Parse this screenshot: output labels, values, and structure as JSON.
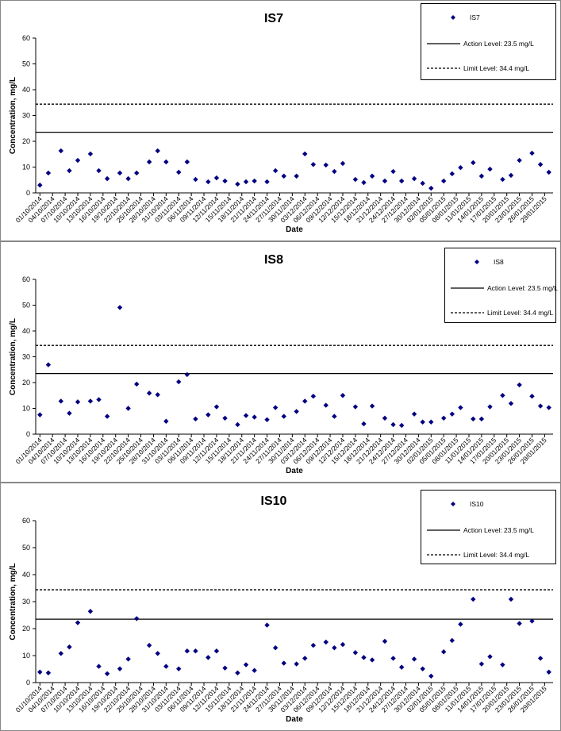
{
  "chart_data": [
    {
      "type": "scatter",
      "title": "IS7",
      "x_label": "Date",
      "y_label": "Concentration, mg/L",
      "xlim": [
        "30/09/2014",
        "31/01/2015"
      ],
      "xticks": [
        "01/10/2014",
        "04/10/2014",
        "07/10/2014",
        "10/10/2014",
        "13/10/2014",
        "16/10/2014",
        "19/10/2014",
        "22/10/2014",
        "25/10/2014",
        "28/10/2014",
        "31/10/2014",
        "03/11/2014",
        "06/11/2014",
        "09/11/2014",
        "12/11/2014",
        "15/11/2014",
        "18/11/2014",
        "21/11/2014",
        "24/11/2014",
        "27/11/2014",
        "30/11/2014",
        "03/12/2014",
        "06/12/2014",
        "09/12/2014",
        "12/12/2014",
        "15/12/2014",
        "18/12/2014",
        "21/12/2014",
        "24/12/2014",
        "27/12/2014",
        "30/12/2014",
        "02/01/2015",
        "05/01/2015",
        "08/01/2015",
        "11/01/2015",
        "14/01/2015",
        "17/01/2015",
        "20/01/2015",
        "23/01/2015",
        "26/01/2015",
        "29/01/2015"
      ],
      "ylim": [
        0,
        60
      ],
      "yticks": [
        0,
        10,
        20,
        30,
        40,
        50,
        60
      ],
      "series": [
        {
          "name": "IS7",
          "color": "#000080",
          "marker": "diamond",
          "x": [
            "01/10/2014",
            "03/10/2014",
            "06/10/2014",
            "08/10/2014",
            "10/10/2014",
            "13/10/2014",
            "15/10/2014",
            "17/10/2014",
            "20/10/2014",
            "22/10/2014",
            "24/10/2014",
            "27/10/2014",
            "29/10/2014",
            "31/10/2014",
            "03/11/2014",
            "05/11/2014",
            "07/11/2014",
            "10/11/2014",
            "12/11/2014",
            "14/11/2014",
            "17/11/2014",
            "19/11/2014",
            "21/11/2014",
            "24/11/2014",
            "26/11/2014",
            "28/11/2014",
            "01/12/2014",
            "03/12/2014",
            "05/12/2014",
            "08/12/2014",
            "10/12/2014",
            "12/12/2014",
            "15/12/2014",
            "17/12/2014",
            "19/12/2014",
            "22/12/2014",
            "24/12/2014",
            "26/12/2014",
            "29/12/2014",
            "31/12/2014",
            "02/01/2015",
            "05/01/2015",
            "07/01/2015",
            "09/01/2015",
            "12/01/2015",
            "14/01/2015",
            "16/01/2015",
            "19/01/2015",
            "21/01/2015",
            "23/01/2015",
            "26/01/2015",
            "28/01/2015",
            "30/01/2015"
          ],
          "values": [
            3,
            7.7,
            16.3,
            8.6,
            12.6,
            15.1,
            8.6,
            5.5,
            7.7,
            5.5,
            7.7,
            12,
            16.3,
            12,
            8,
            12,
            5.2,
            4.3,
            5.8,
            4.6,
            3.4,
            4.3,
            4.6,
            4.3,
            8.6,
            6.5,
            6.5,
            15.1,
            11,
            10.8,
            8.3,
            11.4,
            5.2,
            4,
            6.5,
            4.6,
            8.3,
            4.6,
            5.5,
            3.7,
            1.8,
            4.6,
            7.4,
            9.8,
            11.7,
            6.5,
            9.2,
            5.2,
            6.8,
            12.6,
            15.4,
            11,
            8
          ]
        }
      ],
      "reference_lines": [
        {
          "name": "Action Level: 23.5 mg/L",
          "value": 23.5,
          "color": "#000000",
          "dash": "solid"
        },
        {
          "name": "Limit Level: 34.4 mg/L",
          "value": 34.4,
          "color": "#000000",
          "dash": "dashed"
        }
      ]
    },
    {
      "type": "scatter",
      "title": "IS8",
      "x_label": "Date",
      "y_label": "Concentration, mg/L",
      "xlim": [
        "30/09/2014",
        "31/01/2015"
      ],
      "xticks": [
        "01/10/2014",
        "04/10/2014",
        "07/10/2014",
        "10/10/2014",
        "13/10/2014",
        "16/10/2014",
        "19/10/2014",
        "22/10/2014",
        "25/10/2014",
        "28/10/2014",
        "31/10/2014",
        "03/11/2014",
        "06/11/2014",
        "09/11/2014",
        "12/11/2014",
        "15/11/2014",
        "18/11/2014",
        "21/11/2014",
        "24/11/2014",
        "27/11/2014",
        "30/11/2014",
        "03/12/2014",
        "06/12/2014",
        "09/12/2014",
        "12/12/2014",
        "15/12/2014",
        "18/12/2014",
        "21/12/2014",
        "24/12/2014",
        "27/12/2014",
        "30/12/2014",
        "02/01/2015",
        "05/01/2015",
        "08/01/2015",
        "11/01/2015",
        "14/01/2015",
        "17/01/2015",
        "20/01/2015",
        "23/01/2015",
        "26/01/2015",
        "29/01/2015"
      ],
      "ylim": [
        0,
        60
      ],
      "yticks": [
        0,
        10,
        20,
        30,
        40,
        50,
        60
      ],
      "series": [
        {
          "name": "IS8",
          "color": "#000080",
          "marker": "diamond",
          "x": [
            "01/10/2014",
            "03/10/2014",
            "06/10/2014",
            "08/10/2014",
            "10/10/2014",
            "13/10/2014",
            "15/10/2014",
            "17/10/2014",
            "20/10/2014",
            "22/10/2014",
            "24/10/2014",
            "27/10/2014",
            "29/10/2014",
            "31/10/2014",
            "03/11/2014",
            "05/11/2014",
            "07/11/2014",
            "10/11/2014",
            "12/11/2014",
            "14/11/2014",
            "17/11/2014",
            "19/11/2014",
            "21/11/2014",
            "24/11/2014",
            "26/11/2014",
            "28/11/2014",
            "01/12/2014",
            "03/12/2014",
            "05/12/2014",
            "08/12/2014",
            "10/12/2014",
            "12/12/2014",
            "15/12/2014",
            "17/12/2014",
            "19/12/2014",
            "22/12/2014",
            "24/12/2014",
            "26/12/2014",
            "29/12/2014",
            "31/12/2014",
            "02/01/2015",
            "05/01/2015",
            "07/01/2015",
            "09/01/2015",
            "12/01/2015",
            "14/01/2015",
            "16/01/2015",
            "19/01/2015",
            "21/01/2015",
            "23/01/2015",
            "26/01/2015",
            "28/01/2015",
            "30/01/2015"
          ],
          "values": [
            7.5,
            26.9,
            12.8,
            8.1,
            12.5,
            12.8,
            13.4,
            6.9,
            49.1,
            10,
            19.4,
            15.9,
            15.3,
            5,
            20.3,
            23.1,
            5.9,
            7.5,
            10.6,
            6.2,
            3.7,
            7.2,
            6.6,
            5.6,
            10.3,
            6.9,
            8.8,
            12.8,
            14.7,
            11.2,
            6.9,
            15,
            10.6,
            4,
            10.9,
            6.2,
            3.7,
            3.4,
            7.8,
            4.7,
            4.7,
            6.2,
            7.8,
            10.3,
            5.9,
            5.9,
            10.6,
            15,
            11.9,
            19.1,
            14.7,
            10.9,
            10.3
          ]
        }
      ],
      "reference_lines": [
        {
          "name": "Action Level: 23.5 mg/L",
          "value": 23.5,
          "color": "#000000",
          "dash": "solid"
        },
        {
          "name": "Limit Level: 34.4 mg/L",
          "value": 34.4,
          "color": "#000000",
          "dash": "dashed"
        }
      ]
    },
    {
      "type": "scatter",
      "title": "IS10",
      "x_label": "Date",
      "y_label": "Concentration, mg/L",
      "xlim": [
        "30/09/2014",
        "31/01/2015"
      ],
      "xticks": [
        "01/10/2014",
        "04/10/2014",
        "07/10/2014",
        "10/10/2014",
        "13/10/2014",
        "16/10/2014",
        "19/10/2014",
        "22/10/2014",
        "25/10/2014",
        "28/10/2014",
        "31/10/2014",
        "03/11/2014",
        "06/11/2014",
        "09/11/2014",
        "12/11/2014",
        "15/11/2014",
        "18/11/2014",
        "21/11/2014",
        "24/11/2014",
        "27/11/2014",
        "30/11/2014",
        "03/12/2014",
        "06/12/2014",
        "09/12/2014",
        "12/12/2014",
        "15/12/2014",
        "18/12/2014",
        "21/12/2014",
        "24/12/2014",
        "27/12/2014",
        "30/12/2014",
        "02/01/2015",
        "05/01/2015",
        "08/01/2015",
        "11/01/2015",
        "14/01/2015",
        "17/01/2015",
        "20/01/2015",
        "23/01/2015",
        "26/01/2015",
        "29/01/2015"
      ],
      "ylim": [
        0,
        60
      ],
      "yticks": [
        0,
        10,
        20,
        30,
        40,
        50,
        60
      ],
      "series": [
        {
          "name": "IS10",
          "color": "#000080",
          "marker": "diamond",
          "x": [
            "01/10/2014",
            "03/10/2014",
            "06/10/2014",
            "08/10/2014",
            "10/10/2014",
            "13/10/2014",
            "15/10/2014",
            "17/10/2014",
            "20/10/2014",
            "22/10/2014",
            "24/10/2014",
            "27/10/2014",
            "29/10/2014",
            "31/10/2014",
            "03/11/2014",
            "05/11/2014",
            "07/11/2014",
            "10/11/2014",
            "12/11/2014",
            "14/11/2014",
            "17/11/2014",
            "19/11/2014",
            "21/11/2014",
            "24/11/2014",
            "26/11/2014",
            "28/11/2014",
            "01/12/2014",
            "03/12/2014",
            "05/12/2014",
            "08/12/2014",
            "10/12/2014",
            "12/12/2014",
            "15/12/2014",
            "17/12/2014",
            "19/12/2014",
            "22/12/2014",
            "24/12/2014",
            "26/12/2014",
            "29/12/2014",
            "31/12/2014",
            "02/01/2015",
            "05/01/2015",
            "07/01/2015",
            "09/01/2015",
            "12/01/2015",
            "14/01/2015",
            "16/01/2015",
            "19/01/2015",
            "21/01/2015",
            "23/01/2015",
            "26/01/2015",
            "28/01/2015",
            "30/01/2015"
          ],
          "values": [
            3.9,
            3.6,
            10.8,
            13.2,
            22.2,
            26.4,
            6,
            3.3,
            5.1,
            8.7,
            23.7,
            13.8,
            10.8,
            6,
            5.1,
            11.7,
            11.7,
            9.3,
            11.7,
            5.4,
            3.6,
            6.6,
            4.5,
            21.3,
            12.9,
            7.2,
            6.9,
            9,
            13.8,
            15,
            12.9,
            14.1,
            11.1,
            9.3,
            8.4,
            15.3,
            9,
            5.7,
            8.7,
            5.1,
            2.4,
            11.4,
            15.6,
            21.6,
            30.9,
            6.9,
            9.6,
            6.6,
            30.9,
            21.9,
            22.8,
            9,
            3.9
          ]
        }
      ],
      "reference_lines": [
        {
          "name": "Action Level: 23.5 mg/L",
          "value": 23.5,
          "color": "#000000",
          "dash": "solid"
        },
        {
          "name": "Limit Level: 34.4 mg/L",
          "value": 34.4,
          "color": "#000000",
          "dash": "dashed"
        }
      ]
    }
  ]
}
